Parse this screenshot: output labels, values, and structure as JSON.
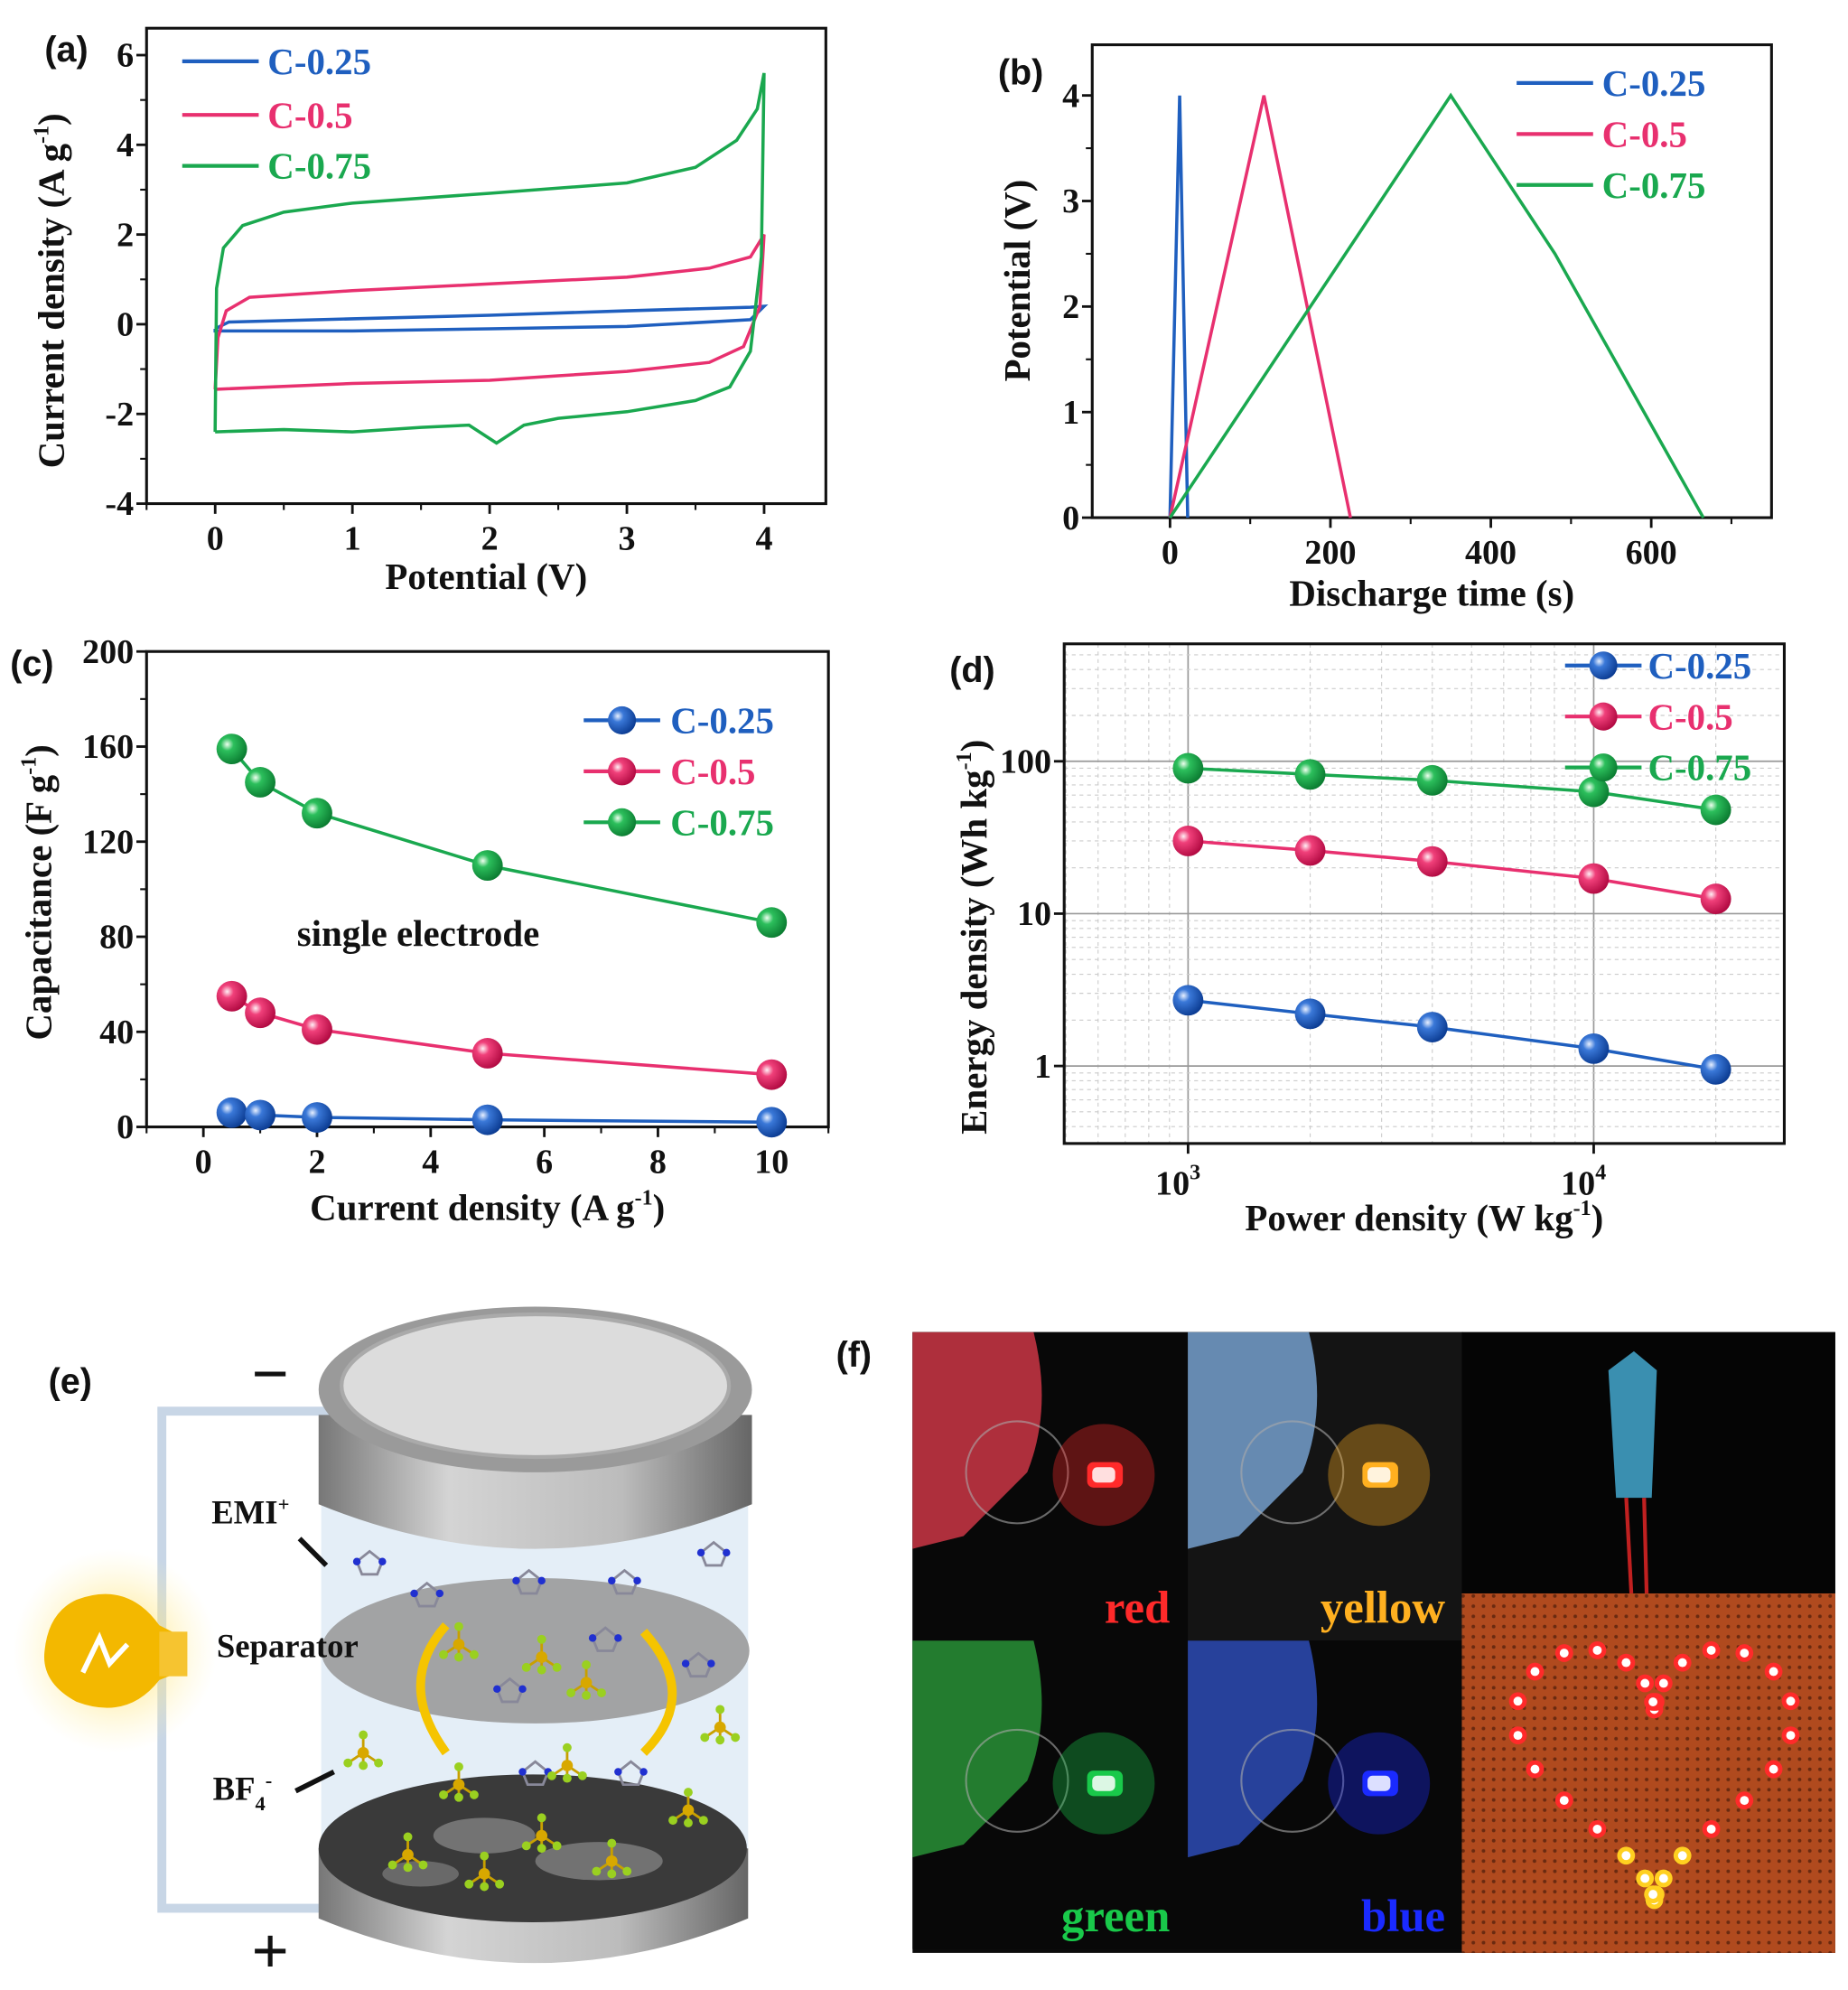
{
  "chart_data": [
    {
      "panel": "(a)",
      "type": "line",
      "xlabel": "Potential (V)",
      "ylabel": {
        "main": "Current density (A g",
        "sup": "-1",
        "tail": ")"
      },
      "xlim": [
        -0.5,
        4.45
      ],
      "ylim": [
        -4,
        6.6
      ],
      "xticks": [
        0,
        1,
        2,
        3,
        4
      ],
      "yticks": [
        -4,
        -2,
        0,
        2,
        4,
        6
      ],
      "grid": false,
      "legend": "top-left",
      "series": [
        {
          "name": "C-0.25",
          "color": "#1f5fbf",
          "points": [
            [
              0,
              -0.1
            ],
            [
              0.1,
              0.05
            ],
            [
              1,
              0.12
            ],
            [
              2,
              0.2
            ],
            [
              3,
              0.3
            ],
            [
              3.9,
              0.38
            ],
            [
              4,
              0.4
            ],
            [
              3.9,
              0.1
            ],
            [
              3,
              -0.05
            ],
            [
              2,
              -0.1
            ],
            [
              1,
              -0.15
            ],
            [
              0,
              -0.15
            ],
            [
              0,
              -0.1
            ]
          ]
        },
        {
          "name": "C-0.5",
          "color": "#e8306f",
          "points": [
            [
              0,
              -1.45
            ],
            [
              0.02,
              -0.3
            ],
            [
              0.08,
              0.3
            ],
            [
              0.25,
              0.6
            ],
            [
              1,
              0.75
            ],
            [
              2,
              0.9
            ],
            [
              3,
              1.05
            ],
            [
              3.6,
              1.25
            ],
            [
              3.9,
              1.5
            ],
            [
              4,
              2.0
            ],
            [
              3.97,
              0.4
            ],
            [
              3.85,
              -0.5
            ],
            [
              3.6,
              -0.85
            ],
            [
              3,
              -1.05
            ],
            [
              2.5,
              -1.15
            ],
            [
              2,
              -1.25
            ],
            [
              1,
              -1.32
            ],
            [
              0,
              -1.45
            ]
          ]
        },
        {
          "name": "C-0.75",
          "color": "#1aa84f",
          "points": [
            [
              0,
              -2.4
            ],
            [
              0.01,
              0.8
            ],
            [
              0.06,
              1.7
            ],
            [
              0.2,
              2.2
            ],
            [
              0.5,
              2.5
            ],
            [
              1,
              2.7
            ],
            [
              2,
              2.92
            ],
            [
              3,
              3.15
            ],
            [
              3.5,
              3.5
            ],
            [
              3.8,
              4.1
            ],
            [
              3.95,
              4.8
            ],
            [
              4,
              5.6
            ],
            [
              3.98,
              1.5
            ],
            [
              3.9,
              -0.6
            ],
            [
              3.75,
              -1.4
            ],
            [
              3.5,
              -1.7
            ],
            [
              3,
              -1.95
            ],
            [
              2.5,
              -2.1
            ],
            [
              2.25,
              -2.25
            ],
            [
              2.05,
              -2.65
            ],
            [
              1.85,
              -2.25
            ],
            [
              1.5,
              -2.3
            ],
            [
              1,
              -2.4
            ],
            [
              0.5,
              -2.35
            ],
            [
              0,
              -2.4
            ]
          ]
        }
      ]
    },
    {
      "panel": "(b)",
      "type": "line",
      "xlabel": "Discharge time (s)",
      "ylabel": "Potential (V)",
      "xlim": [
        -97,
        750
      ],
      "ylim": [
        0,
        4.48
      ],
      "xticks": [
        0,
        200,
        400,
        600
      ],
      "yticks": [
        0,
        1,
        2,
        3,
        4
      ],
      "grid": false,
      "legend": "top-right",
      "series": [
        {
          "name": "C-0.25",
          "color": "#1f5fbf",
          "points": [
            [
              0,
              0
            ],
            [
              12,
              4
            ],
            [
              22,
              0
            ]
          ]
        },
        {
          "name": "C-0.5",
          "color": "#e8306f",
          "points": [
            [
              0,
              0
            ],
            [
              117,
              4
            ],
            [
              225,
              0
            ]
          ]
        },
        {
          "name": "C-0.75",
          "color": "#1aa84f",
          "points": [
            [
              0,
              0
            ],
            [
              350,
              4
            ],
            [
              480,
              2.5
            ],
            [
              665,
              0
            ]
          ]
        }
      ]
    },
    {
      "panel": "(c)",
      "type": "line",
      "xlabel": {
        "main": "Current density (A g",
        "sup": "-1",
        "tail": ")"
      },
      "ylabel": {
        "main": "Capacitance (F g",
        "sup": "-1",
        "tail": ")"
      },
      "annotation": "single electrode",
      "xlim": [
        -1,
        11
      ],
      "ylim": [
        0,
        200
      ],
      "xticks": [
        0,
        2,
        4,
        6,
        8,
        10
      ],
      "yticks": [
        0,
        40,
        80,
        120,
        160,
        200
      ],
      "grid": false,
      "legend": "top-right",
      "x": [
        0.5,
        1,
        2,
        5,
        10
      ],
      "series": [
        {
          "name": "C-0.25",
          "color": "#1f5fbf",
          "values": [
            6,
            5,
            4,
            3,
            2
          ]
        },
        {
          "name": "C-0.5",
          "color": "#e8306f",
          "values": [
            55,
            48,
            41,
            31,
            22
          ]
        },
        {
          "name": "C-0.75",
          "color": "#1aa84f",
          "values": [
            159,
            145,
            132,
            110,
            86
          ]
        }
      ]
    },
    {
      "panel": "(d)",
      "type": "scatter",
      "scale": "log-log",
      "xlabel": {
        "main": "Power density (W kg",
        "sup": "-1",
        "tail": ")"
      },
      "ylabel": {
        "main": "Energy density (Wh kg",
        "sup": "-1",
        "tail": ")"
      },
      "xlim": [
        495,
        29500
      ],
      "ylim": [
        0.31,
        590
      ],
      "xticks": [
        {
          "value": 1000,
          "base": "10",
          "exp": "3"
        },
        {
          "value": 10000,
          "base": "10",
          "exp": "4"
        }
      ],
      "yticks": [
        {
          "value": 1,
          "label": "1"
        },
        {
          "value": 10,
          "label": "10"
        },
        {
          "value": 100,
          "label": "100"
        }
      ],
      "grid": true,
      "legend": "top-right",
      "x": [
        1000,
        2000,
        4000,
        10000,
        20000
      ],
      "series": [
        {
          "name": "C-0.25",
          "color": "#1f5fbf",
          "values": [
            2.7,
            2.2,
            1.8,
            1.3,
            0.95
          ]
        },
        {
          "name": "C-0.5",
          "color": "#e8306f",
          "values": [
            30,
            26,
            22,
            17,
            12.5
          ]
        },
        {
          "name": "C-0.75",
          "color": "#1aa84f",
          "values": [
            90,
            82,
            75,
            63,
            48
          ]
        }
      ]
    }
  ],
  "panel_e": {
    "label": "(e)",
    "minus": "−",
    "plus": "+",
    "cation": {
      "main": "EMI",
      "sup": "+"
    },
    "separator": "Separator",
    "anion": {
      "main": "BF",
      "sub": "4",
      "sup": "-"
    }
  },
  "panel_f": {
    "label": "(f)",
    "photos": [
      {
        "caption": "red",
        "color": "#ff2a2a"
      },
      {
        "caption": "yellow",
        "color": "#ffb020"
      },
      {
        "caption": "green",
        "color": "#19c94a"
      },
      {
        "caption": "blue",
        "color": "#1a2aff"
      }
    ]
  }
}
